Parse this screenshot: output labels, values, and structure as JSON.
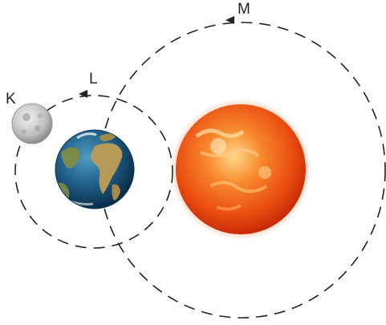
{
  "labels": {
    "moon": "K",
    "earth_orbit": "L",
    "large_orbit": "M"
  },
  "colors": {
    "orbit_stroke": "#222222",
    "sun_core": "#ffd27a",
    "sun_mid": "#f36a18",
    "sun_edge": "#d8340a",
    "earth_ocean": "#1f5f88",
    "earth_land": "#b59a5a",
    "moon": "#c9c9c9"
  },
  "icons": {
    "moon": "moon-icon",
    "earth": "earth-icon",
    "sun": "sun-icon"
  }
}
